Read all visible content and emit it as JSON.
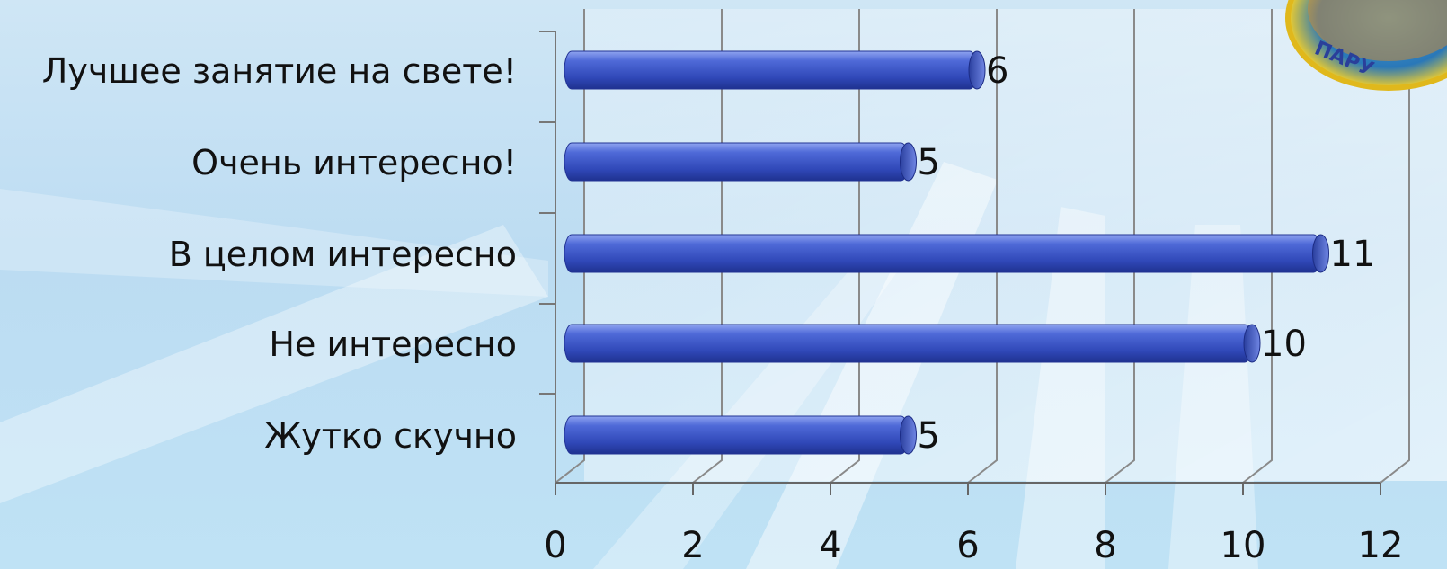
{
  "chart_data": {
    "type": "bar",
    "orientation": "horizontal",
    "categories": [
      "Лучшее занятие на свете!",
      "Очень интересно!",
      "В целом интересно",
      "Не интересно",
      "Жутко скучно"
    ],
    "values": [
      6,
      5,
      11,
      10,
      5
    ],
    "data_labels": [
      "6",
      "5",
      "11",
      "10",
      "5"
    ],
    "x_ticks": [
      "0",
      "2",
      "4",
      "6",
      "8",
      "10",
      "12"
    ],
    "xlim": [
      0,
      12
    ],
    "grid": true,
    "legend": "none",
    "title": "",
    "xlabel": "",
    "ylabel": "",
    "bar_color": "#3a55cc"
  },
  "logo": {
    "text": "ПАРУ"
  }
}
